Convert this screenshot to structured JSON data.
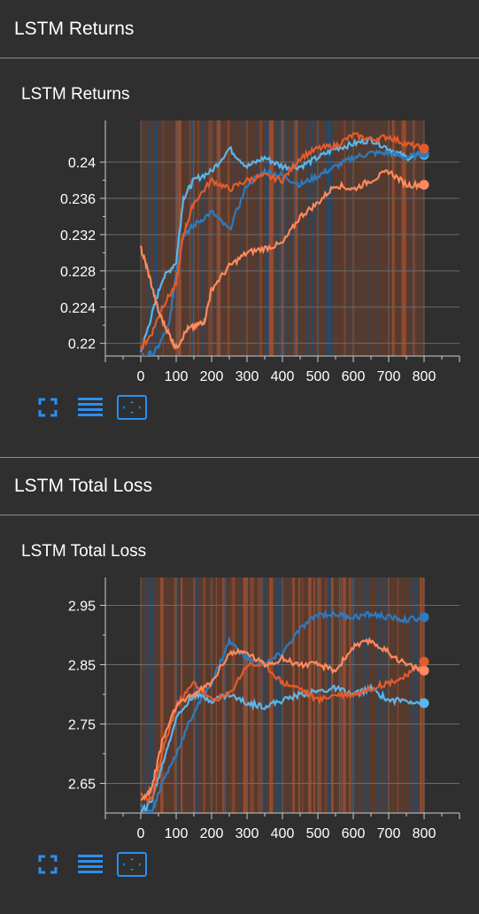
{
  "sections": [
    {
      "header": "LSTM Returns",
      "card_title": "LSTM Returns",
      "chart_data": {
        "type": "line",
        "title": "LSTM Returns",
        "xlabel": "",
        "ylabel": "",
        "xlim": [
          -100,
          900
        ],
        "ylim": [
          0.2186,
          0.2446
        ],
        "x_ticks": [
          0,
          100,
          200,
          300,
          400,
          500,
          600,
          700,
          800
        ],
        "y_ticks": [
          0.22,
          0.224,
          0.228,
          0.232,
          0.236,
          0.24
        ],
        "y_tick_labels": [
          "0.22",
          "0.224",
          "0.228",
          "0.232",
          "0.236",
          "0.24"
        ],
        "grid": true,
        "series": [
          {
            "color": "#5bb6ea",
            "x": [
              0,
              30,
              60,
              100,
              120,
              150,
              200,
              250,
              300,
              350,
              400,
              450,
              500,
              550,
              600,
              650,
              700,
              750,
              800
            ],
            "y": [
              0.219,
              0.223,
              0.227,
              0.229,
              0.236,
              0.238,
              0.239,
              0.2415,
              0.2395,
              0.2405,
              0.2395,
              0.2395,
              0.2405,
              0.2415,
              0.242,
              0.2425,
              0.2415,
              0.2405,
              0.2408
            ]
          },
          {
            "color": "#2d7bc0",
            "x": [
              0,
              40,
              80,
              100,
              120,
              150,
              200,
              250,
              300,
              350,
              400,
              450,
              500,
              550,
              600,
              650,
              700,
              750,
              800
            ],
            "y": [
              0.2185,
              0.219,
              0.222,
              0.228,
              0.232,
              0.233,
              0.2345,
              0.2325,
              0.2375,
              0.239,
              0.2385,
              0.2375,
              0.2385,
              0.2395,
              0.2405,
              0.241,
              0.241,
              0.2405,
              0.241
            ]
          },
          {
            "color": "#e55a2b",
            "x": [
              0,
              30,
              60,
              100,
              120,
              150,
              200,
              250,
              300,
              350,
              400,
              450,
              500,
              550,
              600,
              650,
              700,
              750,
              800
            ],
            "y": [
              0.2195,
              0.221,
              0.224,
              0.2265,
              0.232,
              0.2355,
              0.238,
              0.237,
              0.238,
              0.2385,
              0.238,
              0.2405,
              0.2415,
              0.2418,
              0.243,
              0.2425,
              0.2428,
              0.242,
              0.2415
            ]
          },
          {
            "color": "#ff8a5c",
            "x": [
              0,
              20,
              50,
              80,
              100,
              130,
              160,
              180,
              200,
              250,
              300,
              350,
              400,
              450,
              500,
              550,
              600,
              650,
              700,
              750,
              800
            ],
            "y": [
              0.2305,
              0.228,
              0.2235,
              0.221,
              0.2195,
              0.2215,
              0.222,
              0.2225,
              0.226,
              0.2285,
              0.23,
              0.2305,
              0.231,
              0.234,
              0.2355,
              0.2375,
              0.237,
              0.238,
              0.239,
              0.2375,
              0.2375
            ]
          }
        ]
      }
    },
    {
      "header": "LSTM Total Loss",
      "card_title": "LSTM Total Loss",
      "chart_data": {
        "type": "line",
        "title": "LSTM Total Loss",
        "xlabel": "",
        "ylabel": "",
        "xlim": [
          -100,
          900
        ],
        "ylim": [
          2.6,
          2.997
        ],
        "x_ticks": [
          0,
          100,
          200,
          300,
          400,
          500,
          600,
          700,
          800
        ],
        "y_ticks": [
          2.65,
          2.75,
          2.85,
          2.95
        ],
        "y_tick_labels": [
          "2.65",
          "2.75",
          "2.85",
          "2.95"
        ],
        "grid": true,
        "series": [
          {
            "color": "#2d7bc0",
            "x": [
              0,
              30,
              60,
              100,
              150,
              200,
              250,
              300,
              350,
              400,
              450,
              500,
              550,
              600,
              650,
              700,
              750,
              800
            ],
            "y": [
              2.61,
              2.6,
              2.65,
              2.7,
              2.77,
              2.82,
              2.89,
              2.86,
              2.85,
              2.87,
              2.91,
              2.935,
              2.935,
              2.93,
              2.935,
              2.93,
              2.925,
              2.93
            ]
          },
          {
            "color": "#5bb6ea",
            "x": [
              0,
              30,
              60,
              100,
              150,
              200,
              250,
              300,
              350,
              400,
              450,
              500,
              550,
              600,
              650,
              700,
              750,
              800
            ],
            "y": [
              2.6,
              2.62,
              2.68,
              2.76,
              2.8,
              2.79,
              2.8,
              2.785,
              2.78,
              2.79,
              2.8,
              2.805,
              2.81,
              2.8,
              2.81,
              2.79,
              2.79,
              2.785
            ]
          },
          {
            "color": "#e55a2b",
            "x": [
              0,
              30,
              60,
              100,
              150,
              200,
              250,
              300,
              350,
              400,
              450,
              500,
              550,
              600,
              650,
              700,
              750,
              800
            ],
            "y": [
              2.63,
              2.62,
              2.7,
              2.78,
              2.82,
              2.79,
              2.8,
              2.85,
              2.85,
              2.82,
              2.81,
              2.79,
              2.8,
              2.8,
              2.81,
              2.82,
              2.83,
              2.855
            ]
          },
          {
            "color": "#ff8a5c",
            "x": [
              0,
              30,
              60,
              100,
              150,
              200,
              250,
              300,
              350,
              400,
              450,
              500,
              550,
              600,
              650,
              700,
              750,
              800
            ],
            "y": [
              2.62,
              2.64,
              2.72,
              2.78,
              2.8,
              2.82,
              2.87,
              2.87,
              2.85,
              2.86,
              2.85,
              2.85,
              2.84,
              2.88,
              2.89,
              2.87,
              2.85,
              2.84
            ]
          }
        ]
      }
    }
  ],
  "toolbar": {
    "icons": [
      "fullscreen-icon",
      "lines-icon",
      "fit-domain-icon"
    ],
    "accent": "#2b8ff0"
  },
  "noise_color": "#a4502f",
  "noise_blue": "#1f4a6c"
}
